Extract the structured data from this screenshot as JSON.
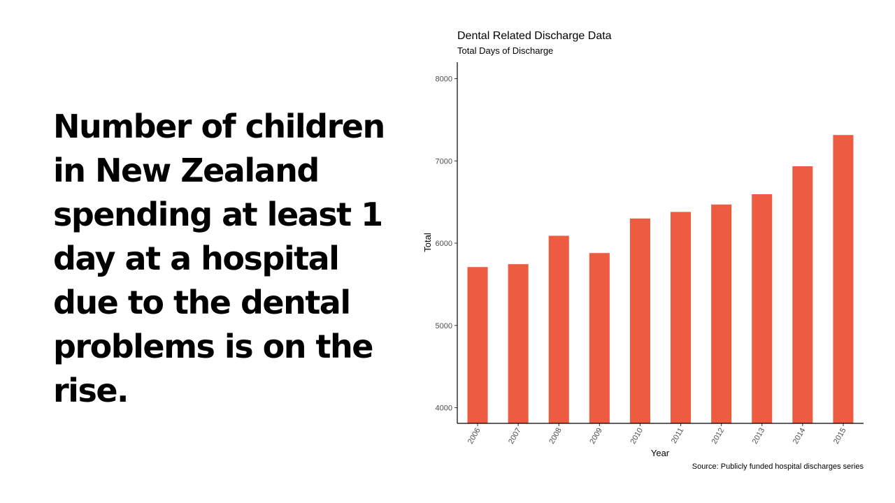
{
  "headline": "Number of children in New Zealand spending at least 1 day at a hospital due to the dental problems is on the rise.",
  "chart_data": {
    "type": "bar",
    "title": "Dental Related Discharge Data",
    "subtitle": "Total Days of Discharge",
    "xlabel": "Year",
    "ylabel": "Total",
    "caption": "Source: Publicly funded hospital discharges series",
    "categories": [
      "2006",
      "2007",
      "2008",
      "2009",
      "2010",
      "2011",
      "2012",
      "2013",
      "2014",
      "2015"
    ],
    "values": [
      5710,
      5745,
      6090,
      5880,
      6300,
      6380,
      6470,
      6595,
      6935,
      7315
    ],
    "yticks": [
      4000,
      5000,
      6000,
      7000,
      8000
    ],
    "ylim": [
      3810,
      8200
    ],
    "bar_color": "#ed5b41",
    "grid": false,
    "legend": "none"
  }
}
